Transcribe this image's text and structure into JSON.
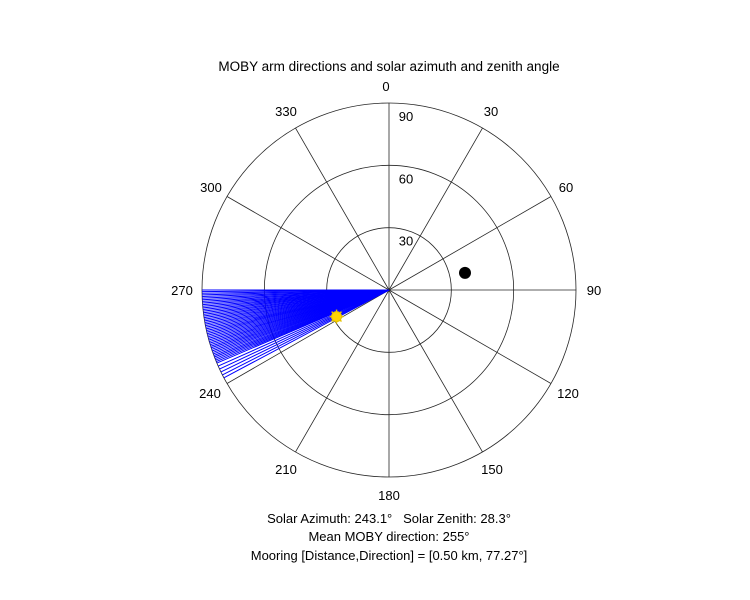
{
  "chart_data": {
    "type": "polar",
    "title": "MOBY arm directions and solar azimuth and zenith angle",
    "orientation": "compass-clockwise-zero-at-top",
    "angular_ticks": [
      0,
      30,
      60,
      90,
      120,
      150,
      180,
      210,
      240,
      270,
      300,
      330
    ],
    "radial_ticks": [
      30,
      60,
      90
    ],
    "radial_max": 90,
    "arm_lines": {
      "color": "#0000ff",
      "directions_deg": [
        242,
        243,
        244,
        245,
        246,
        247,
        247.5,
        248,
        248.5,
        249,
        249.5,
        250,
        250.5,
        251,
        251.5,
        252,
        252.5,
        253,
        253.5,
        254,
        254.5,
        255,
        255.5,
        256,
        256.5,
        257,
        257.5,
        258,
        258.5,
        259,
        259.5,
        260,
        260.5,
        261,
        261.5,
        262,
        262.5,
        263,
        263.5,
        264,
        264.5,
        265,
        265.5,
        266,
        266.5,
        267,
        267.5,
        268,
        268.5,
        269,
        269.5,
        270
      ],
      "length": 90
    },
    "sun_marker": {
      "azimuth": 243.1,
      "zenith": 28.3,
      "color": "#ffd400",
      "edge_color": "#e6c200"
    },
    "mooring_marker": {
      "direction": 77.27,
      "distance_km": 0.5,
      "radius": 37.5,
      "color": "#000000"
    }
  },
  "captions": {
    "line1": "Solar Azimuth: 243.1°   Solar Zenith: 28.3°",
    "line2": "Mean MOBY direction: 255°",
    "line3": "Mooring [Distance,Direction] = [0.50 km, 77.27°]"
  }
}
